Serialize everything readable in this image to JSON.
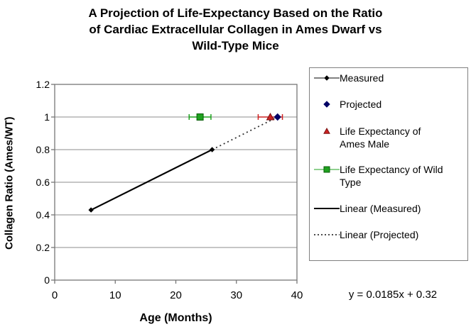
{
  "chart_data": {
    "type": "scatter",
    "title": "A Projection of Life-Expectancy Based on the Ratio of Cardiac Extracellular Collagen in Ames Dwarf vs Wild-Type Mice",
    "title_lines": [
      "A Projection of Life-Expectancy Based on the Ratio",
      "of Cardiac Extracellular Collagen in Ames Dwarf vs",
      "Wild-Type Mice"
    ],
    "xlabel": "Age (Months)",
    "ylabel": "Collagen Ratio (Ames/WT)",
    "xlim": [
      0,
      40
    ],
    "ylim": [
      0,
      1.2
    ],
    "x_ticks": [
      0,
      10,
      20,
      30,
      40
    ],
    "y_ticks": [
      0,
      0.2,
      0.4,
      0.6,
      0.8,
      1,
      1.2
    ],
    "grid": "horizontal-gridlines",
    "legend_position": "right",
    "equation": "y = 0.0185x + 0.32",
    "grid_color": "#8c8c8c",
    "axis_color": "#777777",
    "series": [
      {
        "name": "Measured",
        "kind": "line-markers",
        "line_style": "solid",
        "width": 2,
        "color": "#000000",
        "marker": "diamond",
        "marker_size": 3,
        "points": [
          [
            6,
            0.43
          ],
          [
            26,
            0.8
          ]
        ]
      },
      {
        "name": "Projected",
        "kind": "markers",
        "color": "#000066",
        "marker": "diamond",
        "marker_size": 4.5,
        "points": [
          [
            36.8,
            1.0
          ]
        ]
      },
      {
        "name": "Life Expectancy of Ames Male",
        "kind": "markers-xerr",
        "color": "#cc2222",
        "edge_color": "#7a1010",
        "marker": "triangle",
        "marker_size": 5,
        "points": [
          [
            35.6,
            1.0
          ]
        ],
        "x_error": 2.0
      },
      {
        "name": "Life Expectancy of Wild Type",
        "kind": "line-markers-xerr",
        "color": "#1fa11f",
        "edge_color": "#075e07",
        "marker": "square",
        "marker_size": 4.5,
        "points": [
          [
            24,
            1.0
          ]
        ],
        "x_error": 1.8
      },
      {
        "name": "Linear (Measured)",
        "kind": "line",
        "line_style": "solid",
        "width": 2,
        "color": "#000000",
        "points": [
          [
            6,
            0.43
          ],
          [
            26,
            0.8
          ]
        ]
      },
      {
        "name": "Linear (Projected)",
        "kind": "line",
        "line_style": "dotted",
        "width": 1.8,
        "color": "#333333",
        "points": [
          [
            26,
            0.8
          ],
          [
            36.8,
            1.0
          ]
        ]
      }
    ]
  }
}
